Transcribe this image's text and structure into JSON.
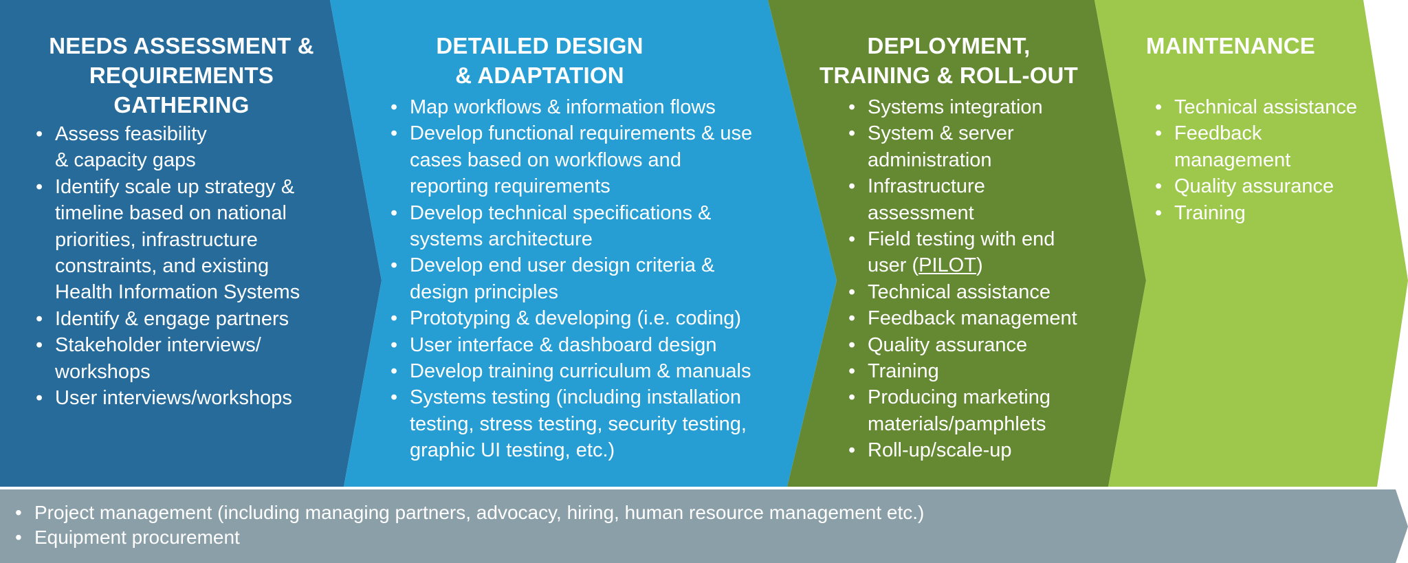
{
  "colors": {
    "phase1": "#276b9b",
    "phase2": "#269ed3",
    "phase3": "#658932",
    "phase4": "#9dc84c",
    "support_bar": "#8a9fa8"
  },
  "phases": [
    {
      "title": "NEEDS ASSESSMENT &\nREQUIREMENTS\nGATHERING",
      "items": [
        "Assess feasibility\n& capacity gaps",
        "Identify scale up strategy &\ntimeline based on national\npriorities, infrastructure\nconstraints, and existing\nHealth Information Systems",
        "Identify & engage partners",
        "Stakeholder interviews/\nworkshops",
        "User interviews/workshops"
      ]
    },
    {
      "title": "DETAILED DESIGN\n&  ADAPTATION",
      "items": [
        "Map workflows & information flows",
        "Develop functional requirements & use\ncases based on workflows and\nreporting requirements",
        "Develop technical specifications &\nsystems architecture",
        "Develop end user design criteria &\ndesign principles",
        "Prototyping & developing (i.e. coding)",
        "User interface & dashboard design",
        "Develop training curriculum & manuals",
        "Systems testing (including installation\ntesting, stress testing, security testing,\ngraphic UI testing, etc.)"
      ]
    },
    {
      "title": "DEPLOYMENT,\nTRAINING & ROLL-OUT",
      "items": [
        "Systems integration",
        "System & server\nadministration",
        "Infrastructure\nassessment",
        "Technical assistance",
        "Feedback management",
        "Quality assurance",
        "Training",
        "Producing marketing\nmaterials/pamphlets",
        "Roll-up/scale-up"
      ],
      "pilot_item": {
        "before": "Field testing with end\nuser (",
        "link": "PILOT",
        "after": ")"
      }
    },
    {
      "title": "MAINTENANCE",
      "items": [
        "Technical assistance",
        "Feedback\nmanagement",
        "Quality assurance",
        "Training"
      ]
    }
  ],
  "cross_cutting": [
    "Project management (including managing partners, advocacy, hiring, human resource management etc.)",
    "Equipment procurement"
  ]
}
